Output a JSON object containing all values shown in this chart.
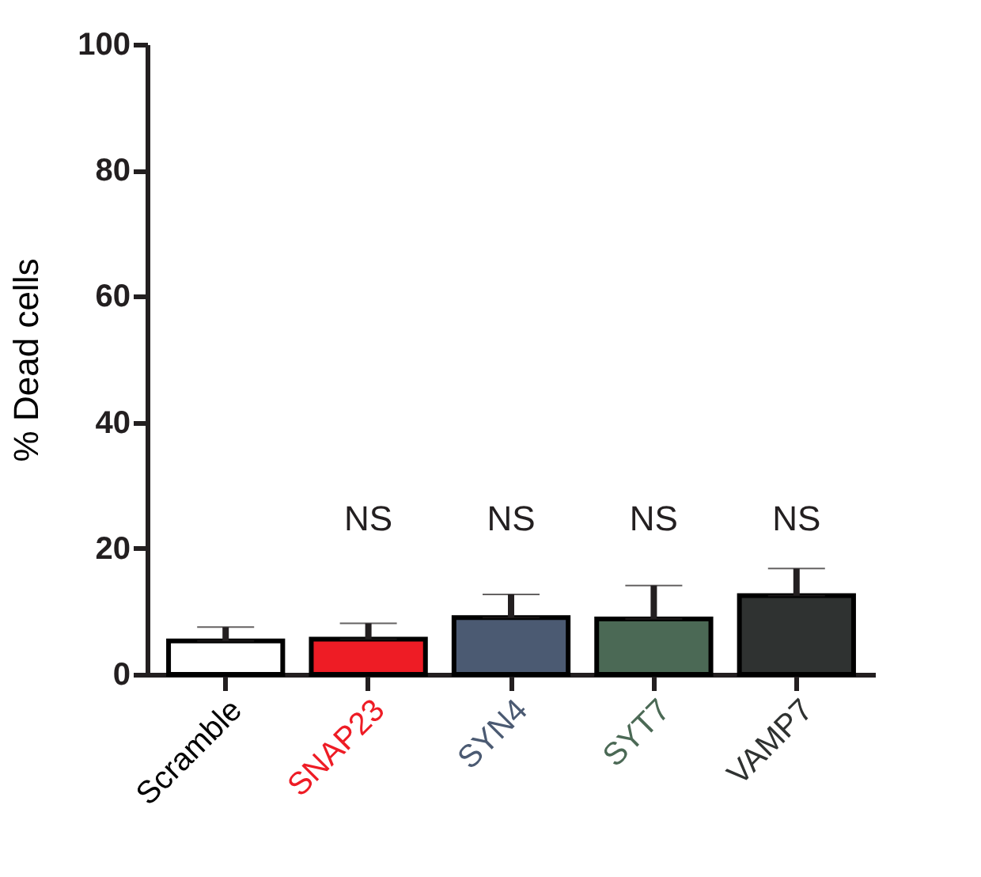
{
  "chart_data": {
    "type": "bar",
    "ylabel": "% Dead cells",
    "categories": [
      "Scramble",
      "SNAP23",
      "SYN4",
      "SYT7",
      "VAMP7"
    ],
    "values": [
      5.3,
      5.6,
      9,
      8.8,
      12.5
    ],
    "errors": [
      [
        5.3,
        7.5
      ],
      [
        5.6,
        8.1
      ],
      [
        9,
        12.7
      ],
      [
        8.8,
        14.1
      ],
      [
        12.5,
        16.8
      ]
    ],
    "colors": [
      "#ffffff",
      "#ee1c25",
      "#4b5a72",
      "#4b6955",
      "#2f3231"
    ],
    "ylim": [
      0,
      100
    ],
    "yticks": [
      0,
      20,
      40,
      60,
      80,
      100
    ],
    "grid": false,
    "annotations": [
      "NS",
      "NS",
      "NS",
      "NS"
    ]
  }
}
